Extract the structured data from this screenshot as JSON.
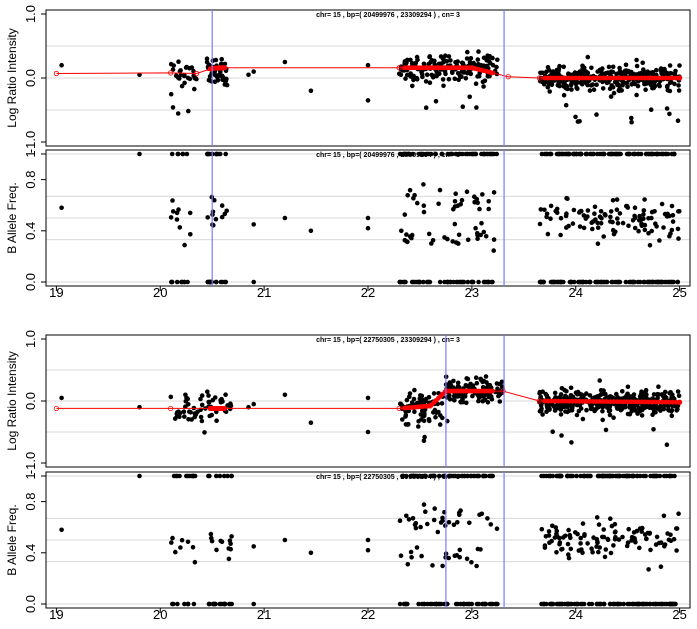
{
  "chart_data": [
    {
      "type": "scatter",
      "panel": "top-lrr",
      "annotation": "chr= 15 , bp=( 20499976 , 23309294 ) , cn= 3",
      "ylabel": "Log Ratio Intensity",
      "ylim": [
        -1.0,
        1.0
      ],
      "yticks": [
        "-1.0",
        "0.0",
        "1.0"
      ],
      "xlim": [
        18.9,
        25.1
      ],
      "grid": "horizontal",
      "region_lines": [
        20.5,
        23.31
      ],
      "segment_line": {
        "x": [
          19.0,
          20.1,
          20.35,
          20.5,
          20.6,
          22.3,
          23.0,
          23.35,
          23.65,
          25.0
        ],
        "y": [
          0.07,
          0.08,
          0.07,
          0.15,
          0.16,
          0.16,
          0.16,
          0.02,
          0.0,
          0.0
        ]
      },
      "clusters": [
        {
          "x_range": [
            20.1,
            20.35
          ],
          "y_center": 0.08,
          "y_spread": 0.22,
          "count": 30
        },
        {
          "x_range": [
            20.45,
            20.65
          ],
          "y_center": 0.12,
          "y_spread": 0.22,
          "count": 45
        },
        {
          "x_range": [
            22.3,
            23.25
          ],
          "y_center": 0.15,
          "y_spread": 0.2,
          "count": 180
        },
        {
          "x_range": [
            23.65,
            25.0
          ],
          "y_center": 0.0,
          "y_spread": 0.17,
          "count": 360
        }
      ]
    },
    {
      "type": "scatter",
      "panel": "top-baf",
      "annotation": "chr= 15 , bp=( 20499976 , 23309294 ) , cn= 3",
      "ylabel": "B Allele Freq.",
      "ylim": [
        0.0,
        1.0
      ],
      "yticks": [
        "0.0",
        "0.4",
        "0.8",
        "1"
      ],
      "xlim": [
        18.9,
        25.1
      ],
      "grid": "horizontal",
      "region_lines": [
        20.5,
        23.31
      ],
      "bands": [
        0.0,
        0.33,
        0.5,
        0.67,
        1.0
      ]
    },
    {
      "type": "scatter",
      "panel": "bottom-lrr",
      "annotation": "chr= 15 , bp=( 22750305 , 23309294 ) , cn= 3",
      "ylabel": "Log Ratio Intensity",
      "ylim": [
        -1.0,
        1.0
      ],
      "yticks": [
        "-1.0",
        "0.0",
        "1.0"
      ],
      "xlim": [
        18.9,
        25.1
      ],
      "grid": "horizontal",
      "region_lines": [
        22.75,
        23.31
      ],
      "segment_line": {
        "x": [
          19.0,
          20.1,
          20.5,
          22.3,
          22.6,
          22.75,
          23.3,
          23.65,
          25.0
        ],
        "y": [
          -0.12,
          -0.12,
          -0.12,
          -0.12,
          -0.08,
          0.16,
          0.16,
          0.0,
          -0.02
        ]
      },
      "clusters": [
        {
          "x_range": [
            20.1,
            20.7
          ],
          "y_center": -0.1,
          "y_spread": 0.22,
          "count": 60
        },
        {
          "x_range": [
            22.3,
            22.72
          ],
          "y_center": -0.1,
          "y_spread": 0.25,
          "count": 80
        },
        {
          "x_range": [
            22.75,
            23.3
          ],
          "y_center": 0.16,
          "y_spread": 0.18,
          "count": 120
        },
        {
          "x_range": [
            23.65,
            25.0
          ],
          "y_center": -0.02,
          "y_spread": 0.17,
          "count": 360
        }
      ]
    },
    {
      "type": "scatter",
      "panel": "bottom-baf",
      "annotation": "chr= 15 , bp=( 22750305 , 23309294 ) , cn= 3",
      "ylabel": "B Allele Freq.",
      "ylim": [
        0.0,
        1.0
      ],
      "yticks": [
        "0.0",
        "0.4",
        "0.8",
        "1"
      ],
      "xlim": [
        18.9,
        25.1
      ],
      "grid": "horizontal",
      "region_lines": [
        22.75,
        23.31
      ],
      "bands": [
        0.0,
        0.33,
        0.5,
        0.67,
        1.0
      ]
    }
  ],
  "x_axis": {
    "ticks": [
      "19",
      "20",
      "21",
      "22",
      "23",
      "24",
      "25"
    ]
  },
  "colors": {
    "points": "#000000",
    "segment": "#ff0000",
    "region_line": "#7b7bff",
    "grid": "#cccccc"
  }
}
